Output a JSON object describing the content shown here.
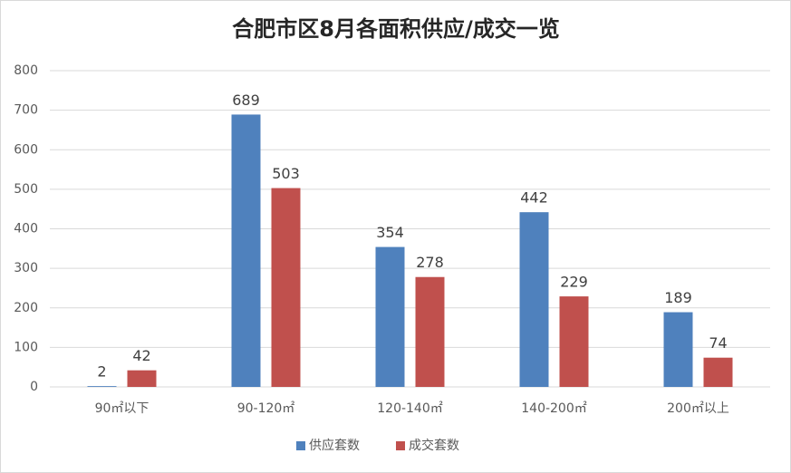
{
  "chart_data": {
    "type": "bar",
    "title": "合肥市区8月各面积供应/成交一览",
    "categories": [
      "90㎡以下",
      "90-120㎡",
      "120-140㎡",
      "140-200㎡",
      "200㎡以上"
    ],
    "series": [
      {
        "name": "供应套数",
        "color": "#4f81bd",
        "values": [
          2,
          689,
          354,
          442,
          189
        ]
      },
      {
        "name": "成交套数",
        "color": "#c0504d",
        "values": [
          42,
          503,
          278,
          229,
          74
        ]
      }
    ],
    "ylim": [
      0,
      800
    ],
    "yticks": [
      0,
      100,
      200,
      300,
      400,
      500,
      600,
      700,
      800
    ],
    "grid": true,
    "legend": "bottom"
  }
}
